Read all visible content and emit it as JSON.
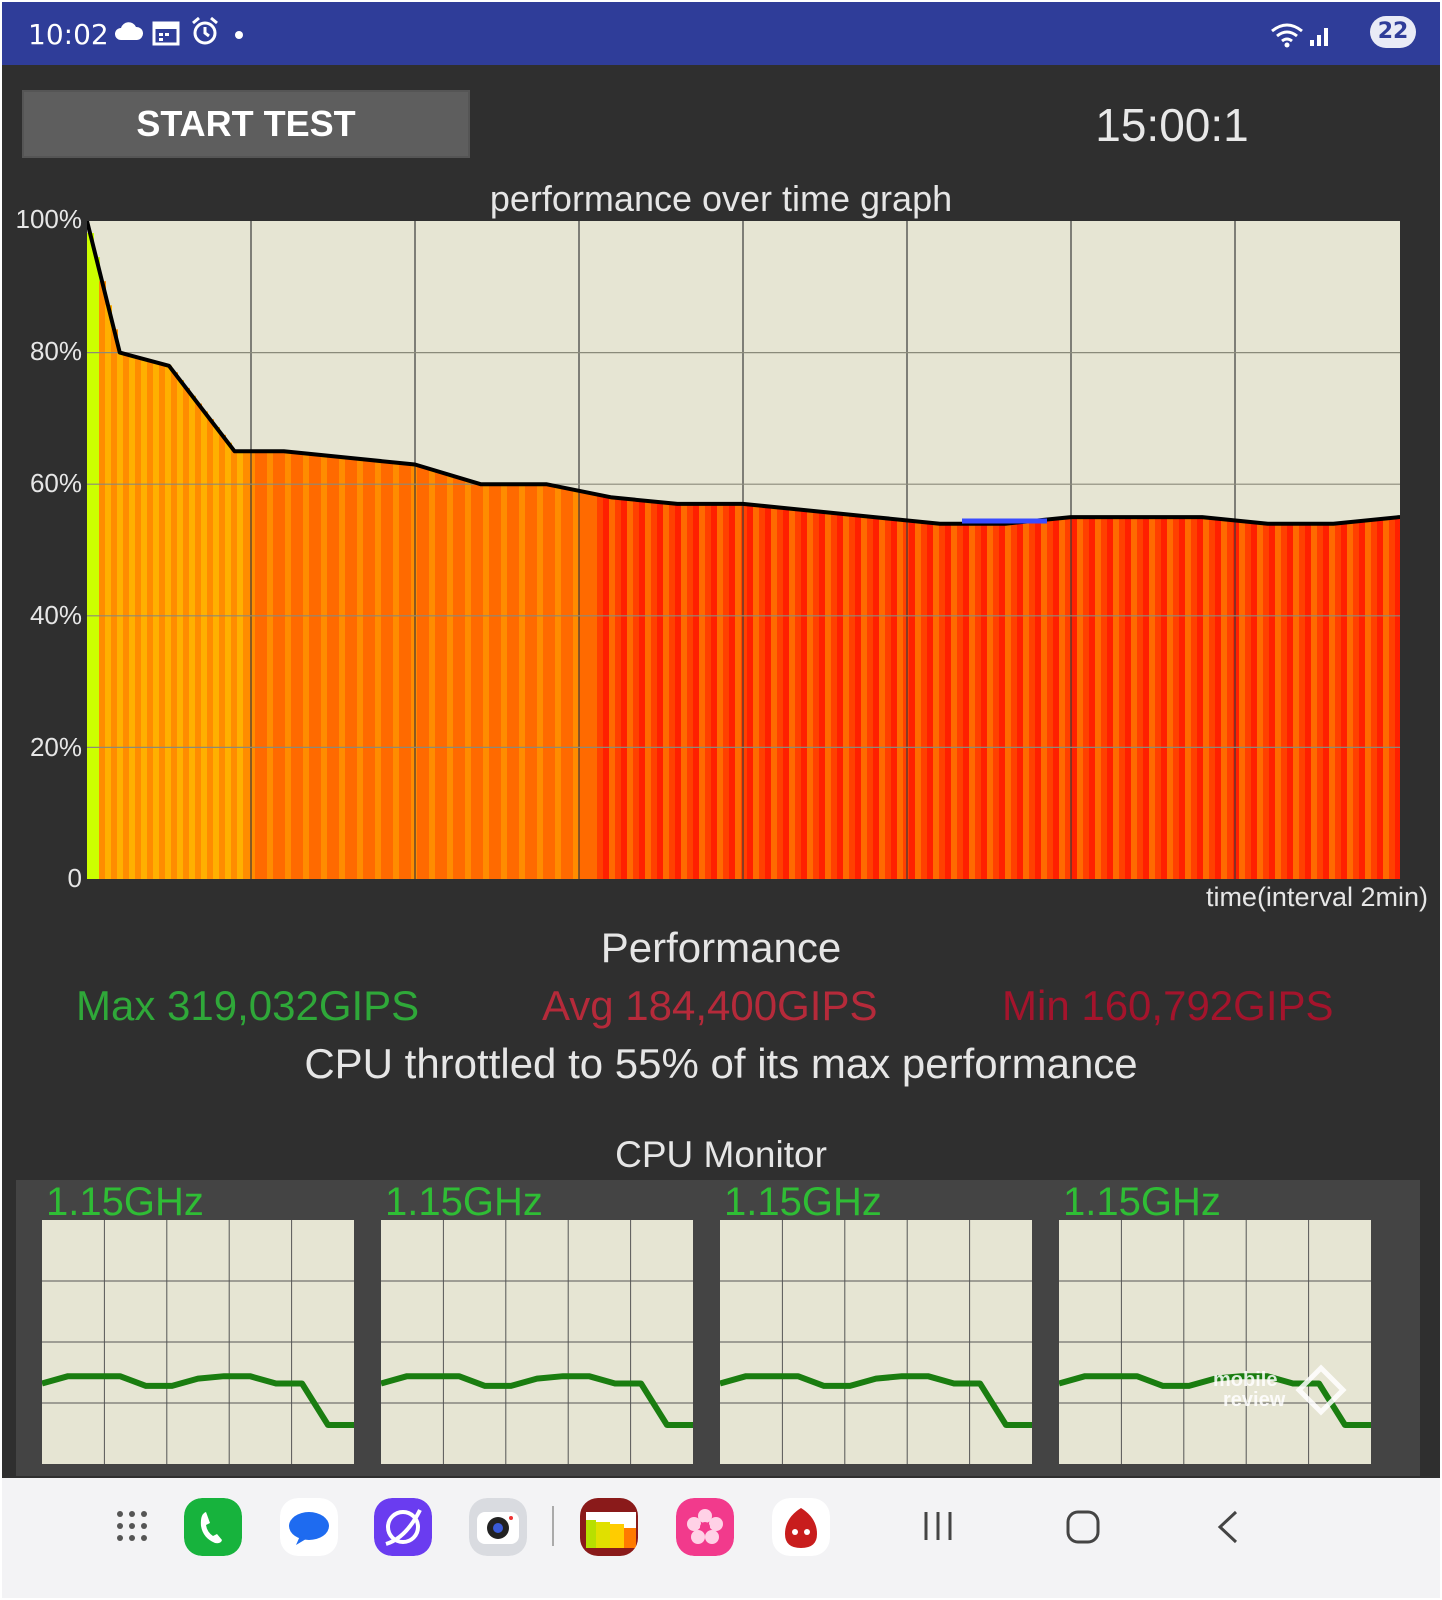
{
  "status_bar": {
    "time": "10:02",
    "left_icons": [
      "cloud-icon",
      "calendar-icon",
      "alarm-icon",
      "dot-icon"
    ],
    "right_icons": [
      "wifi-icon",
      "signal-icon"
    ],
    "battery_level": "22"
  },
  "controls": {
    "start_button": "START TEST",
    "timer": "15:00:1"
  },
  "chart_data": {
    "type": "area",
    "title": "performance over time graph",
    "xlabel": "time(interval 2min)",
    "ylabel": "",
    "y_ticks": [
      "100%",
      "80%",
      "60%",
      "40%",
      "20%",
      "0"
    ],
    "ylim": [
      0,
      100
    ],
    "x_unit_minutes": 2,
    "grid": true,
    "series": [
      {
        "x": [
          0,
          0.2,
          0.5,
          0.9,
          1.2,
          1.6,
          2.0,
          2.4,
          2.8,
          3.2,
          3.6,
          4.0,
          4.4,
          4.8,
          5.2,
          5.6,
          6.0,
          6.4,
          6.8,
          7.2,
          7.6,
          8.0,
          8.4,
          8.8,
          9.2,
          9.6,
          10.0,
          10.4,
          10.8,
          11.2,
          11.6,
          12.0,
          12.4,
          12.8,
          13.2,
          13.6,
          14.0,
          14.4,
          14.9
        ],
        "values": [
          100,
          80,
          78,
          65,
          65,
          64,
          63,
          60,
          60,
          58,
          57,
          57,
          56,
          55,
          54,
          54,
          55,
          55,
          55,
          54,
          54,
          55,
          56,
          55,
          55,
          52,
          58,
          51,
          58,
          52,
          58,
          51,
          58,
          50,
          57,
          56,
          51,
          58,
          55
        ]
      }
    ],
    "heat_colors": [
      "#ccff00",
      "#ffb000",
      "#ff8c00",
      "#ff6a00",
      "#ff4000",
      "#ff2000"
    ],
    "line_color": "#000000",
    "min_marker_color": "#3a4cff"
  },
  "performance": {
    "title": "Performance",
    "max_label": "Max 319,032GIPS",
    "avg_label": "Avg 184,400GIPS",
    "min_label": "Min 160,792GIPS",
    "throttle_text": "CPU throttled to 55% of its max performance",
    "colors": {
      "max": "#2fa839",
      "avg": "#b52a3a",
      "min": "#a4142c"
    }
  },
  "cpu_monitor": {
    "title": "CPU Monitor",
    "cores": [
      {
        "freq": "1.15GHz",
        "values": [
          0.33,
          0.36,
          0.36,
          0.36,
          0.32,
          0.32,
          0.35,
          0.36,
          0.36,
          0.33,
          0.33,
          0.16,
          0.16
        ]
      },
      {
        "freq": "1.15GHz",
        "values": [
          0.33,
          0.36,
          0.36,
          0.36,
          0.32,
          0.32,
          0.35,
          0.36,
          0.36,
          0.33,
          0.33,
          0.16,
          0.16
        ]
      },
      {
        "freq": "1.15GHz",
        "values": [
          0.33,
          0.36,
          0.36,
          0.36,
          0.32,
          0.32,
          0.35,
          0.36,
          0.36,
          0.33,
          0.33,
          0.16,
          0.16
        ]
      },
      {
        "freq": "1.15GHz",
        "values": [
          0.33,
          0.36,
          0.36,
          0.36,
          0.32,
          0.32,
          0.35,
          0.36,
          0.36,
          0.33,
          0.33,
          0.16,
          0.16
        ]
      }
    ],
    "watermark_line1": "mobile",
    "watermark_line2": "review"
  },
  "nav_bar": {
    "apps": [
      "app-drawer-icon",
      "phone-icon",
      "messages-icon",
      "internet-icon",
      "camera-icon",
      "cpu-throttling-icon",
      "gallery-icon",
      "antutu-icon"
    ],
    "buttons": [
      "recents-button",
      "home-button",
      "back-button"
    ]
  }
}
